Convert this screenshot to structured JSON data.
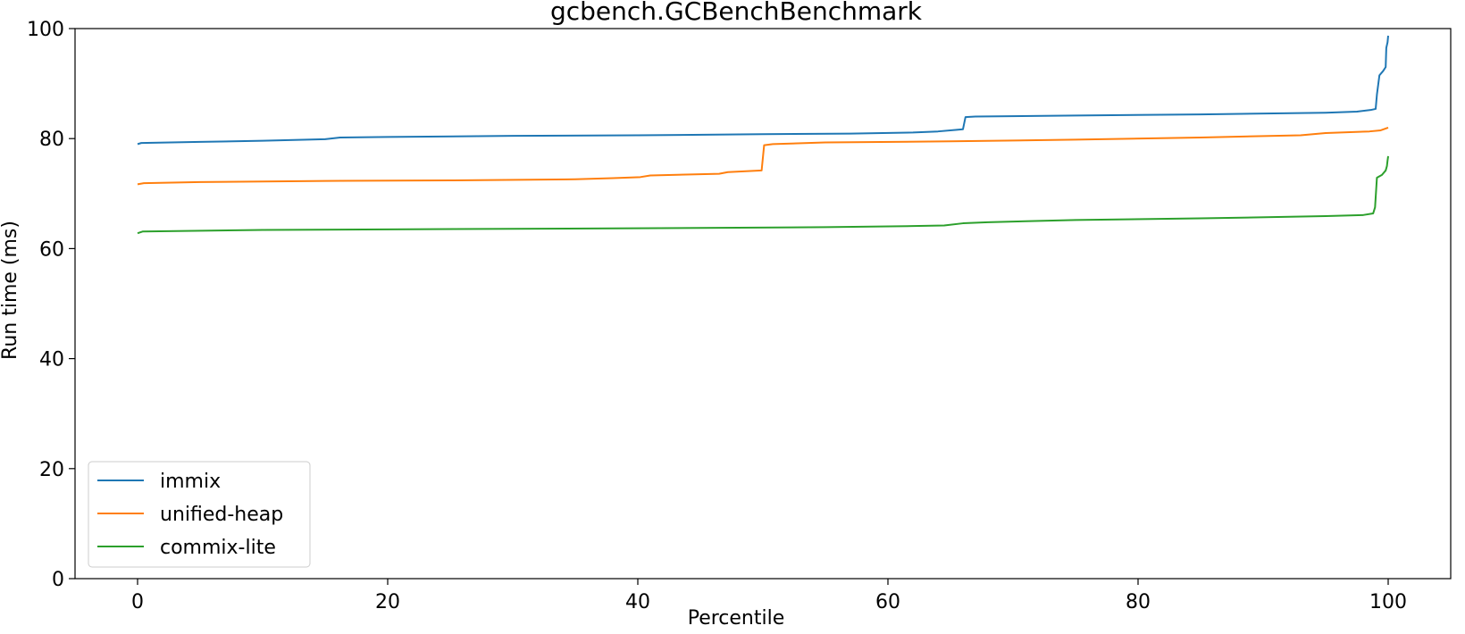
{
  "chart_data": {
    "type": "line",
    "title": "gcbench.GCBenchBenchmark",
    "xlabel": "Percentile",
    "ylabel": "Run time (ms)",
    "xlim": [
      -5,
      105
    ],
    "ylim": [
      0,
      100
    ],
    "xticks": [
      0,
      20,
      40,
      60,
      80,
      100
    ],
    "yticks": [
      0,
      20,
      40,
      60,
      80,
      100
    ],
    "grid": false,
    "legend_position": "lower-left",
    "series": [
      {
        "name": "immix",
        "color": "#1f77b4",
        "points": [
          [
            0,
            79.0
          ],
          [
            0.3,
            79.2
          ],
          [
            5,
            79.4
          ],
          [
            10,
            79.6
          ],
          [
            15,
            79.9
          ],
          [
            16.2,
            80.2
          ],
          [
            20,
            80.3
          ],
          [
            30,
            80.5
          ],
          [
            40,
            80.6
          ],
          [
            50,
            80.8
          ],
          [
            57,
            80.9
          ],
          [
            62,
            81.1
          ],
          [
            64,
            81.3
          ],
          [
            65.5,
            81.6
          ],
          [
            66,
            81.7
          ],
          [
            66.2,
            83.9
          ],
          [
            67,
            84.0
          ],
          [
            75,
            84.2
          ],
          [
            85,
            84.4
          ],
          [
            95,
            84.7
          ],
          [
            97.5,
            84.9
          ],
          [
            98.6,
            85.2
          ],
          [
            99.0,
            85.4
          ],
          [
            99.1,
            88.0
          ],
          [
            99.3,
            91.5
          ],
          [
            99.6,
            92.3
          ],
          [
            99.8,
            93.0
          ],
          [
            99.85,
            96.5
          ],
          [
            99.95,
            97.5
          ],
          [
            100,
            98.7
          ]
        ]
      },
      {
        "name": "unified-heap",
        "color": "#ff7f0e",
        "points": [
          [
            0,
            71.7
          ],
          [
            0.5,
            71.9
          ],
          [
            5,
            72.1
          ],
          [
            15,
            72.3
          ],
          [
            25,
            72.4
          ],
          [
            35,
            72.6
          ],
          [
            38,
            72.8
          ],
          [
            40.2,
            73.0
          ],
          [
            41,
            73.3
          ],
          [
            46.5,
            73.6
          ],
          [
            47.2,
            73.9
          ],
          [
            49.9,
            74.2
          ],
          [
            50.1,
            78.8
          ],
          [
            50.8,
            79.0
          ],
          [
            55,
            79.3
          ],
          [
            65,
            79.5
          ],
          [
            75,
            79.8
          ],
          [
            85,
            80.2
          ],
          [
            93,
            80.6
          ],
          [
            95,
            81.0
          ],
          [
            98.5,
            81.3
          ],
          [
            99.4,
            81.5
          ],
          [
            100,
            82.0
          ]
        ]
      },
      {
        "name": "commix-lite",
        "color": "#2ca02c",
        "points": [
          [
            0,
            62.8
          ],
          [
            0.4,
            63.1
          ],
          [
            10,
            63.4
          ],
          [
            20,
            63.5
          ],
          [
            40,
            63.7
          ],
          [
            55,
            63.9
          ],
          [
            62,
            64.1
          ],
          [
            64.5,
            64.2
          ],
          [
            66,
            64.6
          ],
          [
            68,
            64.8
          ],
          [
            75,
            65.2
          ],
          [
            85,
            65.5
          ],
          [
            95,
            65.9
          ],
          [
            98,
            66.1
          ],
          [
            98.8,
            66.4
          ],
          [
            98.95,
            67.5
          ],
          [
            99.1,
            72.9
          ],
          [
            99.5,
            73.4
          ],
          [
            99.8,
            74.2
          ],
          [
            99.9,
            75.0
          ],
          [
            99.95,
            76.0
          ],
          [
            100,
            76.8
          ]
        ]
      }
    ]
  }
}
